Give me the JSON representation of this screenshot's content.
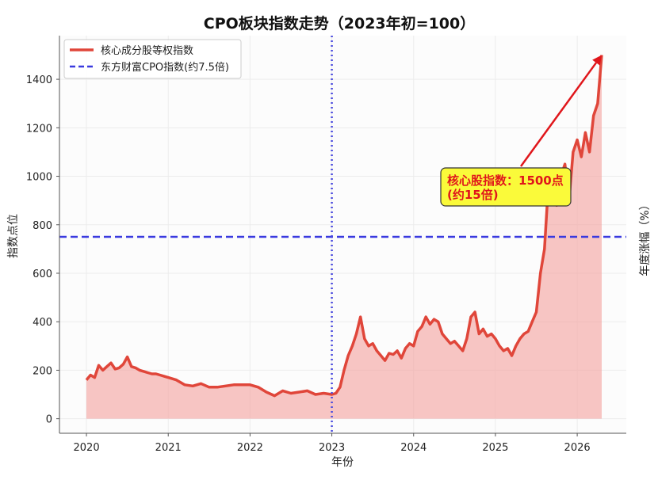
{
  "chart_data": {
    "type": "line",
    "title": "CPO板块指数走势（2023年初=100）",
    "xlabel": "年份",
    "ylabel": "指数点位",
    "right_ylabel": "年度涨幅（%）",
    "xlim": [
      2019.67,
      2026.6
    ],
    "ylim": [
      -60,
      1580
    ],
    "x_ticks": [
      2020,
      2021,
      2022,
      2023,
      2024,
      2025,
      2026
    ],
    "x_tick_labels": [
      "2020",
      "2021",
      "2022",
      "2023",
      "2024",
      "2025",
      "2026"
    ],
    "y_ticks": [
      0,
      200,
      400,
      600,
      800,
      1000,
      1200,
      1400
    ],
    "y_tick_labels": [
      "0",
      "200",
      "400",
      "600",
      "800",
      "1000",
      "1200",
      "1400"
    ],
    "grid": true,
    "legend_position": "top-left",
    "series": [
      {
        "name": "核心成分股等权指数",
        "color": "#e0463a",
        "fill_color": "#f4a8a4",
        "x": [
          2020.0,
          2020.05,
          2020.1,
          2020.15,
          2020.2,
          2020.25,
          2020.3,
          2020.35,
          2020.4,
          2020.45,
          2020.5,
          2020.55,
          2020.6,
          2020.65,
          2020.7,
          2020.75,
          2020.8,
          2020.85,
          2020.9,
          2020.95,
          2021.0,
          2021.1,
          2021.2,
          2021.3,
          2021.4,
          2021.5,
          2021.6,
          2021.7,
          2021.8,
          2021.9,
          2022.0,
          2022.1,
          2022.2,
          2022.3,
          2022.4,
          2022.5,
          2022.6,
          2022.7,
          2022.8,
          2022.9,
          2023.0,
          2023.05,
          2023.1,
          2023.15,
          2023.2,
          2023.25,
          2023.3,
          2023.35,
          2023.4,
          2023.45,
          2023.5,
          2023.55,
          2023.6,
          2023.65,
          2023.7,
          2023.75,
          2023.8,
          2023.85,
          2023.9,
          2023.95,
          2024.0,
          2024.05,
          2024.1,
          2024.15,
          2024.2,
          2024.25,
          2024.3,
          2024.35,
          2024.4,
          2024.45,
          2024.5,
          2024.55,
          2024.6,
          2024.65,
          2024.7,
          2024.75,
          2024.8,
          2024.85,
          2024.9,
          2024.95,
          2025.0,
          2025.05,
          2025.1,
          2025.15,
          2025.2,
          2025.25,
          2025.3,
          2025.35,
          2025.4,
          2025.45,
          2025.5,
          2025.55,
          2025.6,
          2025.65,
          2025.7,
          2025.75,
          2025.8,
          2025.85,
          2025.9,
          2025.95,
          2026.0,
          2026.05,
          2026.1,
          2026.15,
          2026.2,
          2026.25,
          2026.3
        ],
        "values": [
          160,
          180,
          170,
          220,
          200,
          215,
          230,
          205,
          210,
          225,
          255,
          215,
          210,
          200,
          195,
          190,
          185,
          185,
          180,
          175,
          170,
          160,
          140,
          135,
          145,
          130,
          130,
          135,
          140,
          140,
          140,
          130,
          110,
          95,
          115,
          105,
          110,
          115,
          100,
          105,
          100,
          105,
          130,
          200,
          260,
          300,
          350,
          420,
          330,
          300,
          310,
          280,
          260,
          240,
          270,
          265,
          280,
          250,
          290,
          310,
          300,
          360,
          380,
          420,
          390,
          410,
          400,
          350,
          330,
          310,
          320,
          300,
          280,
          330,
          420,
          440,
          350,
          370,
          340,
          350,
          330,
          300,
          280,
          290,
          260,
          300,
          330,
          350,
          360,
          400,
          440,
          600,
          700,
          980,
          950,
          880,
          1000,
          1050,
          900,
          1100,
          1150,
          1080,
          1180,
          1100,
          1250,
          1300,
          1500
        ]
      },
      {
        "name": "东方财富CPO指数(约7.5倍)",
        "color": "#3a3adf",
        "style": "dashed",
        "value": 750
      }
    ],
    "reference_line": {
      "x": 2023.0,
      "color": "#4a4adf",
      "style": "dotted"
    },
    "annotations": [
      {
        "text_line1": "核心股指数：1500点",
        "text_line2": "(约15倍)",
        "target_x": 2026.3,
        "target_y": 1500,
        "arrow_color": "#e0161b",
        "box_color": "#fafa3a"
      }
    ]
  }
}
